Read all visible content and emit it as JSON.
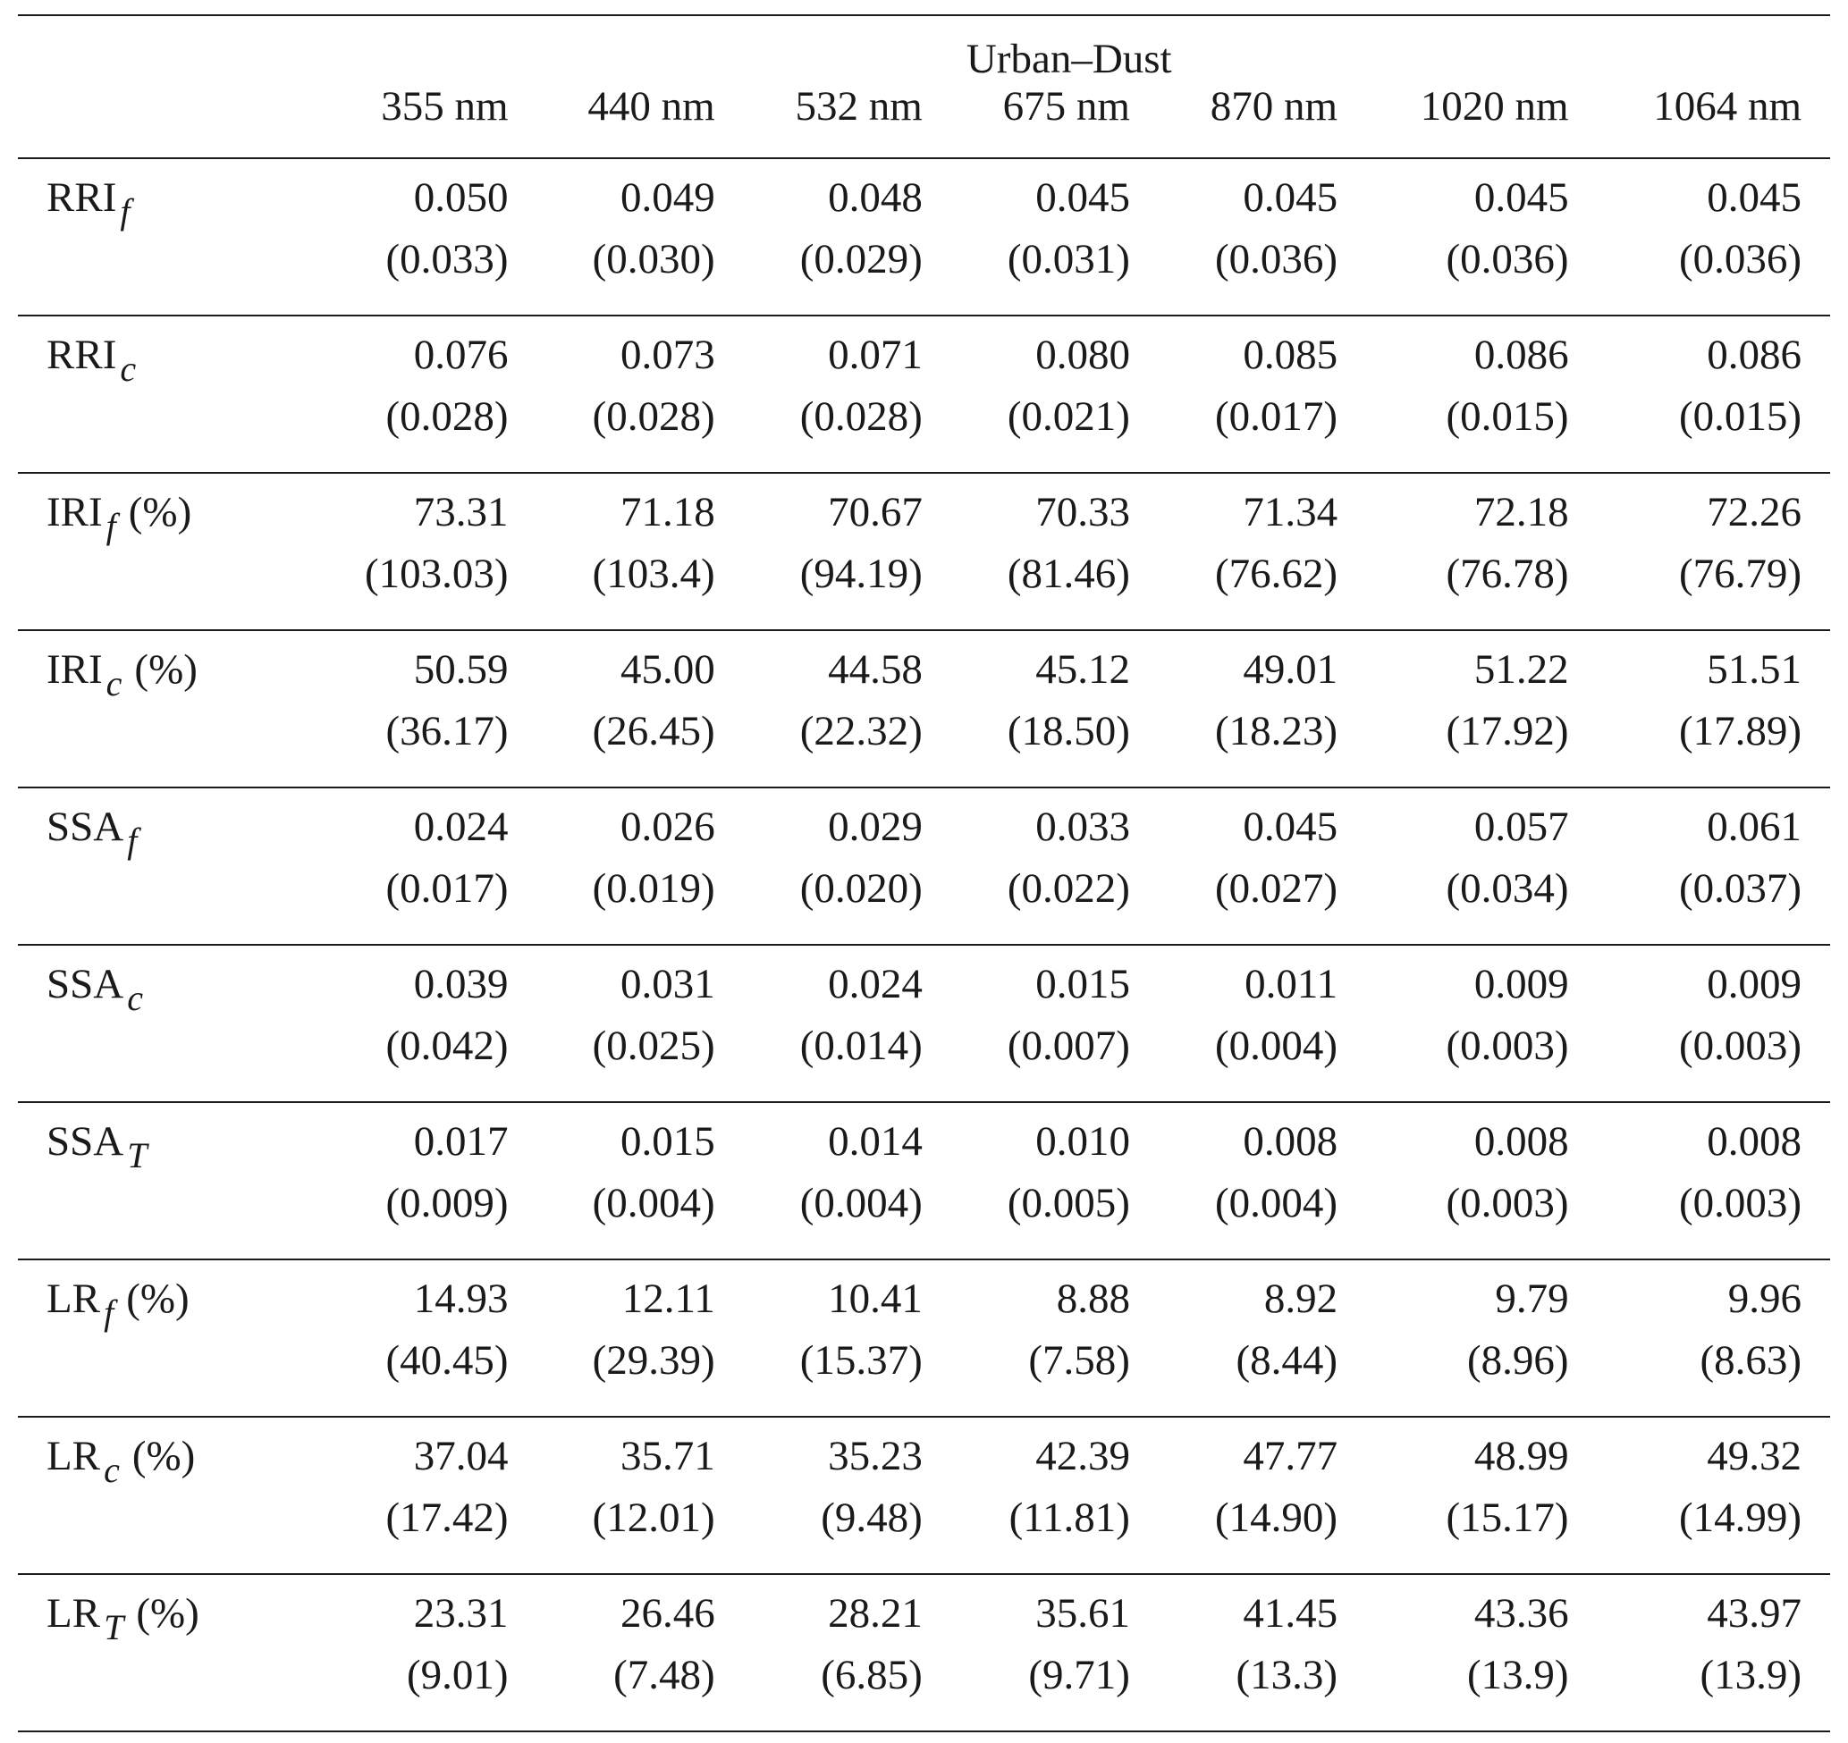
{
  "table": {
    "group_header": "Urban–Dust",
    "wavelengths": [
      "355 nm",
      "440 nm",
      "532 nm",
      "675 nm",
      "870 nm",
      "1020 nm",
      "1064 nm"
    ],
    "rows": [
      {
        "base": "RRI",
        "sub": "f",
        "unit": "",
        "values": [
          "0.050",
          "0.049",
          "0.048",
          "0.045",
          "0.045",
          "0.045",
          "0.045"
        ],
        "uncertainties": [
          "(0.033)",
          "(0.030)",
          "(0.029)",
          "(0.031)",
          "(0.036)",
          "(0.036)",
          "(0.036)"
        ]
      },
      {
        "base": "RRI",
        "sub": "c",
        "unit": "",
        "values": [
          "0.076",
          "0.073",
          "0.071",
          "0.080",
          "0.085",
          "0.086",
          "0.086"
        ],
        "uncertainties": [
          "(0.028)",
          "(0.028)",
          "(0.028)",
          "(0.021)",
          "(0.017)",
          "(0.015)",
          "(0.015)"
        ]
      },
      {
        "base": "IRI",
        "sub": "f",
        "unit": "(%)",
        "values": [
          "73.31",
          "71.18",
          "70.67",
          "70.33",
          "71.34",
          "72.18",
          "72.26"
        ],
        "uncertainties": [
          "(103.03)",
          "(103.4)",
          "(94.19)",
          "(81.46)",
          "(76.62)",
          "(76.78)",
          "(76.79)"
        ]
      },
      {
        "base": "IRI",
        "sub": "c",
        "unit": "(%)",
        "values": [
          "50.59",
          "45.00",
          "44.58",
          "45.12",
          "49.01",
          "51.22",
          "51.51"
        ],
        "uncertainties": [
          "(36.17)",
          "(26.45)",
          "(22.32)",
          "(18.50)",
          "(18.23)",
          "(17.92)",
          "(17.89)"
        ]
      },
      {
        "base": "SSA",
        "sub": "f",
        "unit": "",
        "values": [
          "0.024",
          "0.026",
          "0.029",
          "0.033",
          "0.045",
          "0.057",
          "0.061"
        ],
        "uncertainties": [
          "(0.017)",
          "(0.019)",
          "(0.020)",
          "(0.022)",
          "(0.027)",
          "(0.034)",
          "(0.037)"
        ]
      },
      {
        "base": "SSA",
        "sub": "c",
        "unit": "",
        "values": [
          "0.039",
          "0.031",
          "0.024",
          "0.015",
          "0.011",
          "0.009",
          "0.009"
        ],
        "uncertainties": [
          "(0.042)",
          "(0.025)",
          "(0.014)",
          "(0.007)",
          "(0.004)",
          "(0.003)",
          "(0.003)"
        ]
      },
      {
        "base": "SSA",
        "sub": "T",
        "unit": "",
        "values": [
          "0.017",
          "0.015",
          "0.014",
          "0.010",
          "0.008",
          "0.008",
          "0.008"
        ],
        "uncertainties": [
          "(0.009)",
          "(0.004)",
          "(0.004)",
          "(0.005)",
          "(0.004)",
          "(0.003)",
          "(0.003)"
        ]
      },
      {
        "base": "LR",
        "sub": "f",
        "unit": "(%)",
        "values": [
          "14.93",
          "12.11",
          "10.41",
          "8.88",
          "8.92",
          "9.79",
          "9.96"
        ],
        "uncertainties": [
          "(40.45)",
          "(29.39)",
          "(15.37)",
          "(7.58)",
          "(8.44)",
          "(8.96)",
          "(8.63)"
        ]
      },
      {
        "base": "LR",
        "sub": "c",
        "unit": "(%)",
        "values": [
          "37.04",
          "35.71",
          "35.23",
          "42.39",
          "47.77",
          "48.99",
          "49.32"
        ],
        "uncertainties": [
          "(17.42)",
          "(12.01)",
          "(9.48)",
          "(11.81)",
          "(14.90)",
          "(15.17)",
          "(14.99)"
        ]
      },
      {
        "base": "LR",
        "sub": "T",
        "unit": "(%)",
        "values": [
          "23.31",
          "26.46",
          "28.21",
          "35.61",
          "41.45",
          "43.36",
          "43.97"
        ],
        "uncertainties": [
          "(9.01)",
          "(7.48)",
          "(6.85)",
          "(9.71)",
          "(13.3)",
          "(13.9)",
          "(13.9)"
        ]
      }
    ]
  }
}
